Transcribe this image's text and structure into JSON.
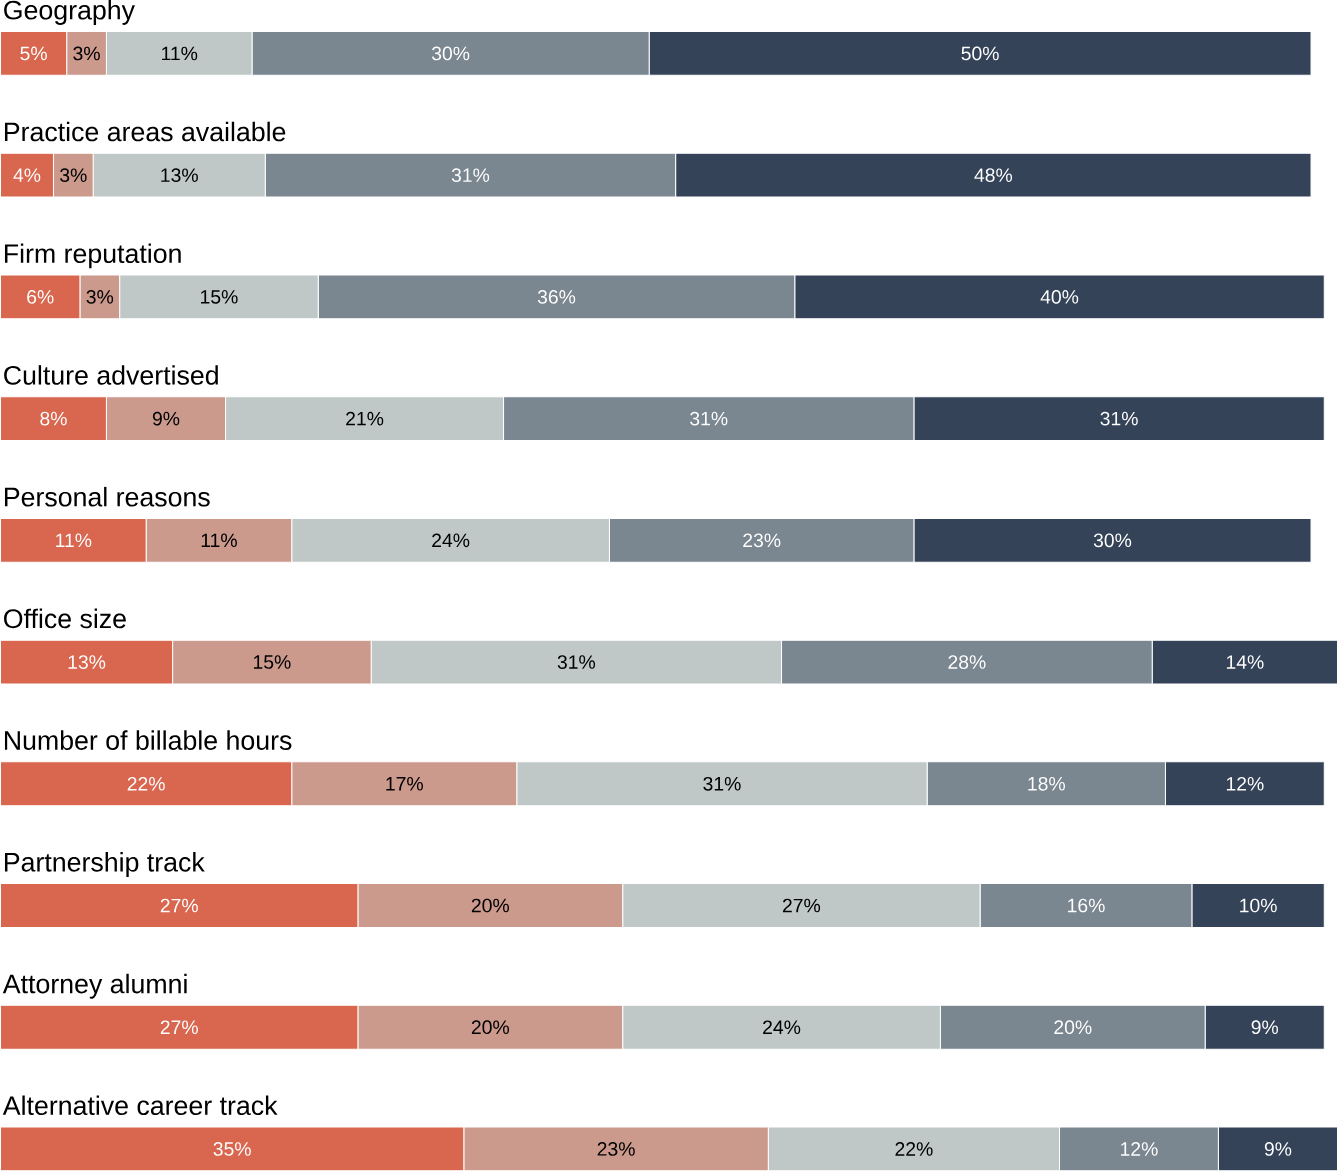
{
  "chart_data": {
    "type": "bar",
    "orientation": "horizontal",
    "stacked": true,
    "xlim": [
      0,
      101
    ],
    "categories": [
      "Geography",
      "Practice areas available",
      "Firm reputation",
      "Culture advertised",
      "Personal reasons",
      "Office size",
      "Number of billable hours",
      "Partnership track",
      "Attorney alumni",
      "Alternative career track"
    ],
    "series": [
      {
        "color": "#d9674f",
        "values": [
          5,
          4,
          6,
          8,
          11,
          13,
          22,
          27,
          27,
          35
        ],
        "value_labels": [
          "5%",
          "4%",
          "6%",
          "8%",
          "11%",
          "13%",
          "22%",
          "27%",
          "27%",
          "35%"
        ]
      },
      {
        "color": "#cc998d",
        "values": [
          3,
          3,
          3,
          9,
          11,
          15,
          17,
          20,
          20,
          23
        ],
        "value_labels": [
          "3%",
          "3%",
          "3%",
          "9%",
          "11%",
          "15%",
          "17%",
          "20%",
          "20%",
          "23%"
        ]
      },
      {
        "color": "#bfc8c7",
        "values": [
          11,
          13,
          15,
          21,
          24,
          31,
          31,
          27,
          24,
          22
        ],
        "value_labels": [
          "11%",
          "13%",
          "15%",
          "21%",
          "24%",
          "31%",
          "31%",
          "27%",
          "24%",
          "22%"
        ]
      },
      {
        "color": "#7a8690",
        "values": [
          30,
          31,
          36,
          31,
          23,
          28,
          18,
          16,
          20,
          12
        ],
        "value_labels": [
          "30%",
          "31%",
          "36%",
          "31%",
          "23%",
          "28%",
          "18%",
          "16%",
          "20%",
          "12%"
        ]
      },
      {
        "color": "#354358",
        "values": [
          50,
          48,
          40,
          31,
          30,
          14,
          12,
          10,
          9,
          9
        ],
        "value_labels": [
          "50%",
          "48%",
          "40%",
          "31%",
          "30%",
          "14%",
          "12%",
          "10%",
          "9%",
          "9%"
        ]
      }
    ]
  }
}
